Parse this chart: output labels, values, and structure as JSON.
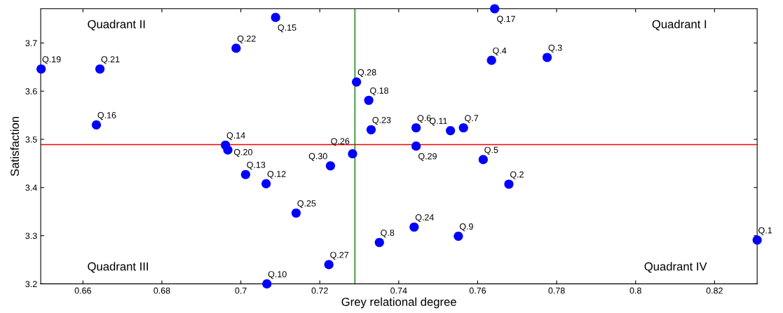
{
  "chart_data": {
    "type": "scatter",
    "xlabel": "Grey relational degree",
    "ylabel": "Satisfaction",
    "x": [
      0.8308,
      0.7679,
      0.7776,
      0.7635,
      0.7614,
      0.7444,
      0.7564,
      0.7351,
      0.7551,
      0.7066,
      0.7531,
      0.7064,
      0.7012,
      0.6961,
      0.7088,
      0.6634,
      0.7643,
      0.7324,
      0.6494,
      0.6967,
      0.6643,
      0.6988,
      0.733,
      0.7439,
      0.714,
      0.7283,
      0.7223,
      0.7293,
      0.7444,
      0.7227
    ],
    "series": [
      {
        "color": "#0000ff",
        "values": [
          3.291,
          3.407,
          3.67,
          3.664,
          3.458,
          3.524,
          3.524,
          3.286,
          3.299,
          3.2,
          3.518,
          3.408,
          3.427,
          3.488,
          3.753,
          3.53,
          3.771,
          3.581,
          3.646,
          3.478,
          3.646,
          3.689,
          3.52,
          3.318,
          3.347,
          3.47,
          3.24,
          3.619,
          3.486,
          3.445
        ],
        "value_labels": [
          "Q.1",
          "Q.2",
          "Q.3",
          "Q.4",
          "Q.5",
          "Q.6",
          "Q.7",
          "Q.8",
          "Q.9",
          "Q.10",
          "Q.11",
          "Q.12",
          "Q.13",
          "Q.14",
          "Q.15",
          "Q.16",
          "Q.17",
          "Q.18",
          "Q.19",
          "Q.20",
          "Q.21",
          "Q.22",
          "Q.23",
          "Q.24",
          "Q.25",
          "Q.26",
          "Q.27",
          "Q.28",
          "Q.29",
          "Q.30"
        ]
      }
    ],
    "marker": "circle",
    "xlim": [
      0.6493,
      0.8308
    ],
    "ylim": [
      3.2,
      3.771
    ],
    "xticks": [
      0.66,
      0.68,
      0.7,
      0.72,
      0.74,
      0.76,
      0.78,
      0.8,
      0.82
    ],
    "yticks": [
      3.2,
      3.3,
      3.4,
      3.5,
      3.6,
      3.7
    ],
    "ref_lines": [
      {
        "axis": "y",
        "value": 3.489,
        "color": "#ff0000"
      },
      {
        "axis": "x",
        "value": 0.7289,
        "color": "#008000"
      }
    ],
    "annotations": [
      "Quadrant I",
      "Quadrant II",
      "Quadrant III",
      "Quadrant IV"
    ],
    "grid": false,
    "legend": false
  }
}
